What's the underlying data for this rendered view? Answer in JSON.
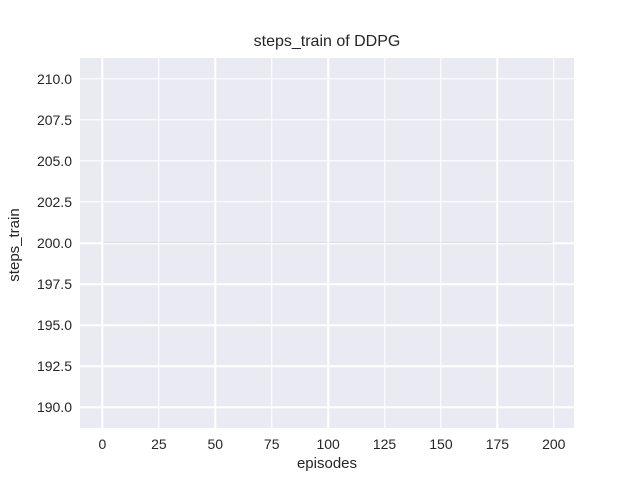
{
  "figure": {
    "background": "#ffffff",
    "text_color": "#262626"
  },
  "chart_data": {
    "type": "line",
    "title": "steps_train of DDPG",
    "xlabel": "episodes",
    "ylabel": "steps_train",
    "xlim": [
      -9.95,
      208.95
    ],
    "ylim": [
      188.75,
      211.25
    ],
    "x_ticks": [
      0,
      25,
      50,
      75,
      100,
      125,
      150,
      175,
      200
    ],
    "x_tick_labels": [
      "0",
      "25",
      "50",
      "75",
      "100",
      "125",
      "150",
      "175",
      "200"
    ],
    "y_ticks": [
      190,
      192.5,
      195,
      197.5,
      200,
      202.5,
      205,
      207.5,
      210
    ],
    "y_tick_labels": [
      "190.0",
      "192.5",
      "195.0",
      "197.5",
      "200.0",
      "202.5",
      "205.0",
      "207.5",
      "210.0"
    ],
    "grid": true,
    "gridline_color": "#ffffff",
    "plot_background": "#eaeaf2",
    "legend": null,
    "series": [
      {
        "name": "steps_train",
        "color": "#4c72b0",
        "line_width": 2,
        "x": [
          0,
          199
        ],
        "y": [
          200,
          200
        ],
        "note": "constant value 200 for all episodes 0-199"
      }
    ]
  }
}
